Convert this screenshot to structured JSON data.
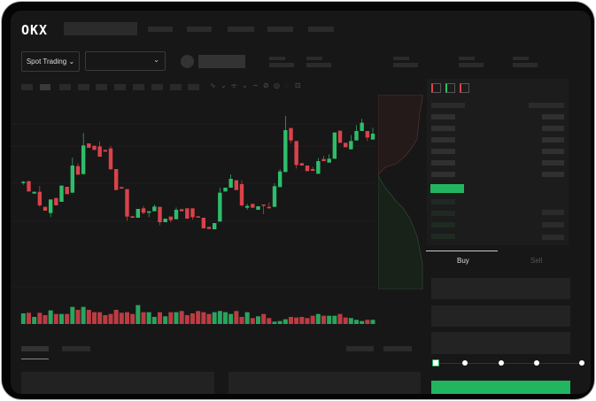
{
  "header": {
    "logo": "OKX",
    "spot_trading_label": "Spot Trading",
    "chevron": "⌄"
  },
  "order_form": {
    "tabs": [
      {
        "label": "Buy",
        "active": true
      },
      {
        "label": "Sell",
        "active": false
      }
    ],
    "slider_level": 0
  },
  "colors": {
    "up": "#2ebd6b",
    "down": "#d9434b",
    "background": "#171717",
    "accent": "#22b560"
  },
  "chart_data": {
    "type": "candlestick",
    "title": "",
    "xlabel": "",
    "ylabel": "",
    "grid": true,
    "candles": [
      [
        350,
        350,
        352,
        340
      ],
      [
        352,
        317,
        352,
        317
      ],
      [
        310,
        316,
        316,
        310
      ],
      [
        316,
        270,
        335,
        265
      ],
      [
        265,
        252,
        265,
        252
      ],
      [
        244,
        290,
        290,
        230
      ],
      [
        295,
        270,
        295,
        270
      ],
      [
        282,
        337,
        337,
        282
      ],
      [
        333,
        308,
        333,
        308
      ],
      [
        313,
        405,
        432,
        313
      ],
      [
        403,
        374,
        412,
        374
      ],
      [
        376,
        473,
        515,
        376
      ],
      [
        480,
        465,
        480,
        465
      ],
      [
        472,
        458,
        472,
        458
      ],
      [
        470,
        435,
        487,
        435
      ],
      [
        458,
        452,
        458,
        452
      ],
      [
        463,
        392,
        472,
        392
      ],
      [
        393,
        322,
        393,
        322
      ],
      [
        332,
        327,
        332,
        327
      ],
      [
        325,
        232,
        325,
        218
      ],
      [
        233,
        228,
        233,
        228
      ],
      [
        228,
        258,
        258,
        228
      ],
      [
        260,
        245,
        268,
        240
      ],
      [
        245,
        250,
        250,
        230
      ],
      [
        250,
        266,
        273,
        250
      ],
      [
        265,
        213,
        265,
        202
      ],
      [
        213,
        225,
        225,
        213
      ],
      [
        232,
        220,
        232,
        212
      ],
      [
        223,
        255,
        263,
        223
      ],
      [
        257,
        250,
        257,
        250
      ],
      [
        260,
        225,
        260,
        225
      ],
      [
        260,
        230,
        260,
        222
      ],
      [
        233,
        230,
        233,
        230
      ],
      [
        228,
        192,
        228,
        192
      ],
      [
        197,
        190,
        197,
        190
      ],
      [
        189,
        210,
        210,
        189
      ],
      [
        215,
        313,
        330,
        215
      ],
      [
        317,
        330,
        330,
        317
      ],
      [
        330,
        360,
        375,
        330
      ],
      [
        355,
        322,
        355,
        322
      ],
      [
        342,
        270,
        355,
        265
      ],
      [
        262,
        268,
        275,
        255
      ],
      [
        275,
        262,
        275,
        262
      ],
      [
        255,
        267,
        267,
        255
      ],
      [
        273,
        270,
        273,
        240
      ],
      [
        265,
        260,
        280,
        260
      ],
      [
        265,
        335,
        345,
        265
      ],
      [
        332,
        385,
        392,
        332
      ],
      [
        383,
        525,
        573,
        383
      ],
      [
        532,
        490,
        532,
        480
      ],
      [
        488,
        407,
        488,
        395
      ],
      [
        413,
        405,
        413,
        405
      ],
      [
        405,
        386,
        405,
        386
      ],
      [
        393,
        387,
        400,
        387
      ],
      [
        377,
        420,
        430,
        377
      ],
      [
        427,
        420,
        438,
        420
      ],
      [
        415,
        428,
        443,
        415
      ],
      [
        428,
        517,
        517,
        428
      ],
      [
        523,
        482,
        523,
        482
      ],
      [
        482,
        467,
        482,
        467
      ],
      [
        460,
        488,
        508,
        460
      ],
      [
        490,
        522,
        542,
        490
      ],
      [
        522,
        550,
        563,
        522
      ],
      [
        522,
        500,
        522,
        488
      ],
      [
        493,
        513,
        533,
        493
      ]
    ],
    "volume": [
      36,
      38,
      24,
      38,
      30,
      46,
      34,
      34,
      34,
      58,
      48,
      58,
      48,
      40,
      40,
      30,
      34,
      48,
      38,
      40,
      34,
      64,
      40,
      40,
      24,
      40,
      26,
      40,
      40,
      44,
      30,
      36,
      44,
      40,
      34,
      40,
      44,
      40,
      34,
      44,
      24,
      40,
      20,
      26,
      34,
      20,
      8,
      10,
      16,
      24,
      22,
      24,
      20,
      28,
      34,
      28,
      28,
      28,
      34,
      22,
      20,
      14,
      10,
      14,
      14
    ]
  }
}
